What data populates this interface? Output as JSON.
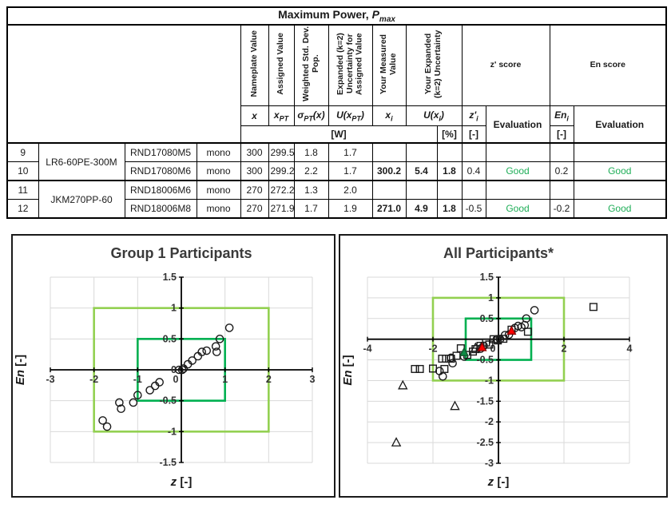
{
  "table": {
    "title": {
      "text": "Maximum Power, ",
      "symbol": "P",
      "subscript": "max"
    },
    "vertical_headers": [
      "Nameplate Value",
      "Assigned Value",
      "Weighted Std. Dev. Pop.",
      "Expanded (k=2) Uncertainty for Assigned Value",
      "Your Measured Value",
      "Your Expanded (k=2) Uncertainty"
    ],
    "score_headers": {
      "z": "z' score",
      "en": "En score"
    },
    "symbol_row": {
      "x": "x",
      "xpt": "x_{PT}",
      "sigma": "σ_{PT}(x)",
      "upt": "U(x_{PT})",
      "xi": "x_{i}",
      "uxi": "U(x_{i})",
      "zi": "z'_{i}",
      "eval1": "Evaluation",
      "eni": "En_{i}",
      "eval2": "Evaluation"
    },
    "units": {
      "w": "[W]",
      "pct": "[%]",
      "dash1": "[-]",
      "dash2": "[-]"
    },
    "rows": [
      {
        "num": "9",
        "module": "LR6-60PE-300M",
        "module_rowspan": 2,
        "sample": "RND17080M5",
        "cell_type": "mono",
        "values": {
          "x": "300",
          "xpt": "299.5",
          "sigma": "1.8",
          "upt": "1.7",
          "xi": "",
          "uw": "",
          "upct": "",
          "z": "",
          "eval": "",
          "en": "",
          "eval2": ""
        }
      },
      {
        "num": "10",
        "sample": "RND17080M6",
        "cell_type": "mono",
        "values": {
          "x": "300",
          "xpt": "299.2",
          "sigma": "2.2",
          "upt": "1.7",
          "xi": "300.2",
          "uw": "5.4",
          "upct": "1.8",
          "z": "0.4",
          "eval": "Good",
          "en": "0.2",
          "eval2": "Good"
        }
      },
      {
        "num": "11",
        "module": "JKM270PP-60",
        "module_rowspan": 2,
        "sample": "RND18006M6",
        "cell_type": "mono",
        "values": {
          "x": "270",
          "xpt": "272.2",
          "sigma": "1.3",
          "upt": "2.0",
          "xi": "",
          "uw": "",
          "upct": "",
          "z": "",
          "eval": "",
          "en": "",
          "eval2": ""
        }
      },
      {
        "num": "12",
        "sample": "RND18006M8",
        "cell_type": "mono",
        "values": {
          "x": "270",
          "xpt": "271.9",
          "sigma": "1.7",
          "upt": "1.9",
          "xi": "271.0",
          "uw": "4.9",
          "upct": "1.8",
          "z": "-0.5",
          "eval": "Good",
          "en": "-0.2",
          "eval2": "Good"
        }
      }
    ]
  },
  "colors": {
    "good_text": "#1FAE58",
    "light_green_box": "#92D050",
    "dark_green_box": "#00B050",
    "red_marker": "#FF0000",
    "green_marker": "#0E8C46",
    "grid": "#D9D9D9",
    "axis": "#000000"
  },
  "chart_data": [
    {
      "type": "scatter",
      "title": "Group 1 Participants",
      "xlabel_symbol": "z",
      "xlabel_unit": " [-]",
      "ylabel_symbol": "En",
      "ylabel_unit": " [-]",
      "xlim": [
        -3,
        3
      ],
      "ylim": [
        -1.5,
        1.5
      ],
      "grid": true,
      "xticks": [
        {
          "v": -3,
          "label": "-3"
        },
        {
          "v": -2,
          "label": "-2"
        },
        {
          "v": -1,
          "label": "-1"
        },
        {
          "v": 0,
          "label": "0"
        },
        {
          "v": 1,
          "label": "1"
        },
        {
          "v": 2,
          "label": "2"
        },
        {
          "v": 3,
          "label": "3"
        }
      ],
      "yticks": [
        {
          "v": 1.5,
          "label": "1.5"
        },
        {
          "v": 1,
          "label": "1"
        },
        {
          "v": 0.5,
          "label": "0.5"
        },
        {
          "v": 0,
          "label": "0"
        },
        {
          "v": -0.5,
          "label": "-0.5"
        },
        {
          "v": -1,
          "label": "-1"
        },
        {
          "v": -1.5,
          "label": "-1.5"
        }
      ],
      "boxes": [
        {
          "x1": -2,
          "y1": -1,
          "x2": 2,
          "y2": 1,
          "color": "#92D050"
        },
        {
          "x1": -1,
          "y1": -0.5,
          "x2": 1,
          "y2": 0.5,
          "color": "#00B050"
        }
      ],
      "series": [
        {
          "name": "group1-circles",
          "marker": "circle",
          "stroke": "#1a1a1a",
          "fill": "none",
          "size": 4.6,
          "points": [
            [
              -1.8,
              -0.82
            ],
            [
              -1.7,
              -0.92
            ],
            [
              -1.42,
              -0.53
            ],
            [
              -1.38,
              -0.63
            ],
            [
              -1.1,
              -0.53
            ],
            [
              -1.0,
              -0.41
            ],
            [
              -0.72,
              -0.33
            ],
            [
              -0.6,
              -0.26
            ],
            [
              -0.5,
              -0.2
            ],
            [
              -0.05,
              0
            ],
            [
              0.02,
              0
            ],
            [
              0.05,
              0.02
            ],
            [
              0.15,
              0.09
            ],
            [
              0.25,
              0.15
            ],
            [
              0.38,
              0.22
            ],
            [
              0.47,
              0.29
            ],
            [
              0.58,
              0.31
            ],
            [
              0.79,
              0.38
            ],
            [
              0.81,
              0.29
            ],
            [
              0.88,
              0.5
            ],
            [
              1.1,
              0.68
            ]
          ]
        }
      ]
    },
    {
      "type": "scatter",
      "title": "All Participants*",
      "xlabel_symbol": "z",
      "xlabel_unit": " [-]",
      "ylabel_symbol": "En",
      "ylabel_unit": " [-]",
      "xlim": [
        -4,
        4
      ],
      "ylim": [
        -3,
        1.5
      ],
      "grid": true,
      "xticks": [
        {
          "v": -4,
          "label": "-4"
        },
        {
          "v": -2,
          "label": "-2"
        },
        {
          "v": 0,
          "label": "0"
        },
        {
          "v": 2,
          "label": "2"
        },
        {
          "v": 4,
          "label": "4"
        }
      ],
      "yticks": [
        {
          "v": 1.5,
          "label": "1.5"
        },
        {
          "v": 1,
          "label": "1"
        },
        {
          "v": 0.5,
          "label": "0.5"
        },
        {
          "v": 0,
          "label": ""
        },
        {
          "v": -0.5,
          "label": "-0.5"
        },
        {
          "v": -1,
          "label": "-1"
        },
        {
          "v": -1.5,
          "label": "-1.5"
        },
        {
          "v": -2,
          "label": "-2"
        },
        {
          "v": -2.5,
          "label": "-2.5"
        },
        {
          "v": -3,
          "label": "-3"
        }
      ],
      "boxes": [
        {
          "x1": -2,
          "y1": -1,
          "x2": 2,
          "y2": 1,
          "color": "#92D050"
        },
        {
          "x1": -1,
          "y1": -0.5,
          "x2": 1,
          "y2": 0.5,
          "color": "#00B050"
        }
      ],
      "series": [
        {
          "name": "group2-squares",
          "marker": "square",
          "stroke": "#1a1a1a",
          "fill": "none",
          "size": 8.6,
          "points": [
            [
              2.9,
              0.78
            ],
            [
              0.9,
              0.18
            ],
            [
              0.4,
              0.23
            ],
            [
              0.15,
              0.01
            ],
            [
              -0.02,
              -0.03
            ],
            [
              -0.15,
              0.0
            ],
            [
              -0.28,
              -0.13
            ],
            [
              -0.38,
              -0.08
            ],
            [
              -0.55,
              -0.16
            ],
            [
              -0.7,
              -0.24
            ],
            [
              -0.78,
              -0.3
            ],
            [
              -0.95,
              -0.38
            ],
            [
              -1.15,
              -0.22
            ],
            [
              -1.28,
              -0.4
            ],
            [
              -1.45,
              -0.47
            ],
            [
              -1.6,
              -0.47
            ],
            [
              -1.72,
              -0.47
            ],
            [
              -1.65,
              -0.72
            ],
            [
              -2.0,
              -0.71
            ],
            [
              -2.4,
              -0.72
            ],
            [
              -2.55,
              -0.72
            ]
          ]
        },
        {
          "name": "group3-triangles",
          "marker": "triangle",
          "stroke": "#1a1a1a",
          "fill": "none",
          "size": 5.6,
          "points": [
            [
              -0.7,
              -0.21
            ],
            [
              -2.92,
              -1.12
            ],
            [
              -1.33,
              -1.62
            ],
            [
              -3.12,
              -2.5
            ]
          ]
        },
        {
          "name": "group1-circles",
          "marker": "circle",
          "stroke": "#1a1a1a",
          "fill": "none",
          "size": 4.6,
          "points": [
            [
              1.1,
              0.7
            ],
            [
              0.85,
              0.5
            ],
            [
              0.8,
              0.34
            ],
            [
              0.7,
              0.29
            ],
            [
              0.6,
              0.32
            ],
            [
              0.5,
              0.27
            ],
            [
              0.32,
              0.11
            ],
            [
              0.2,
              0.1
            ],
            [
              0.05,
              0.0
            ],
            [
              -0.05,
              0.0
            ],
            [
              -0.45,
              -0.16
            ],
            [
              -0.55,
              -0.23
            ],
            [
              -1.05,
              -0.42
            ],
            [
              -1.4,
              -0.58
            ],
            [
              -1.45,
              -0.45
            ],
            [
              -1.8,
              -0.77
            ],
            [
              -1.7,
              -0.9
            ]
          ]
        },
        {
          "name": "green-filled-triangle",
          "marker": "triangle",
          "stroke": "#14532d",
          "fill": "#0E8C46",
          "size": 5.4,
          "points": [
            [
              -1.05,
              -0.32
            ]
          ]
        },
        {
          "name": "your-results-red-triangles",
          "marker": "triangle",
          "stroke": "#8B0000",
          "fill": "#FF0000",
          "size": 5.4,
          "points": [
            [
              0.4,
              0.2
            ],
            [
              -0.5,
              -0.2
            ]
          ]
        }
      ]
    }
  ]
}
